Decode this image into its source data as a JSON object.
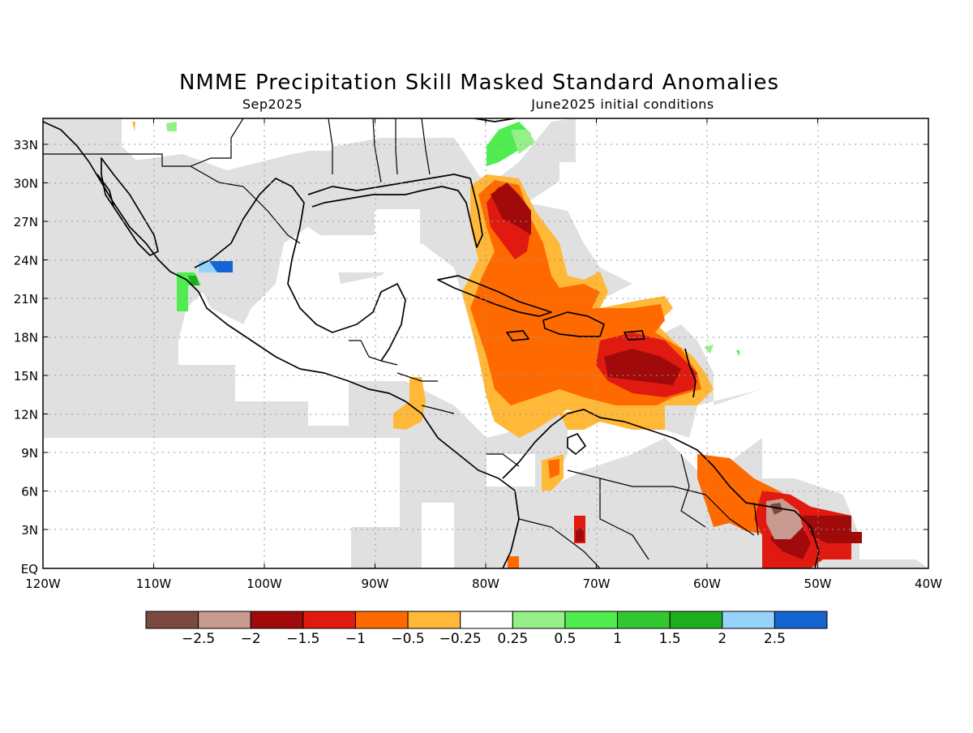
{
  "title": "NMME Precipitation Skill Masked Standard Anomalies",
  "subtitle_left": "Sep2025",
  "subtitle_right": "June2025 initial conditions",
  "lat_ticks": [
    "33N",
    "30N",
    "27N",
    "24N",
    "21N",
    "18N",
    "15N",
    "12N",
    "9N",
    "6N",
    "3N",
    "EQ"
  ],
  "lon_ticks": [
    "120W",
    "110W",
    "100W",
    "90W",
    "80W",
    "70W",
    "60W",
    "50W",
    "40W"
  ],
  "colorbar": {
    "colors": [
      "#7a4a40",
      "#c89a90",
      "#a00a0a",
      "#e01a10",
      "#ff6a00",
      "#ffb838",
      "#ffffff",
      "#96f08a",
      "#50ec50",
      "#32c832",
      "#1fae1f",
      "#96d2fa",
      "#1464d2"
    ],
    "labels": [
      "-2.5",
      "-2",
      "-1.5",
      "-1",
      "-0.5",
      "-0.25",
      "0.25",
      "0.5",
      "1",
      "1.5",
      "2",
      "2.5"
    ]
  },
  "colors": {
    "skill_masked_gray": "#e0e0e0",
    "land_outline": "#000000",
    "grid": "#999999"
  }
}
